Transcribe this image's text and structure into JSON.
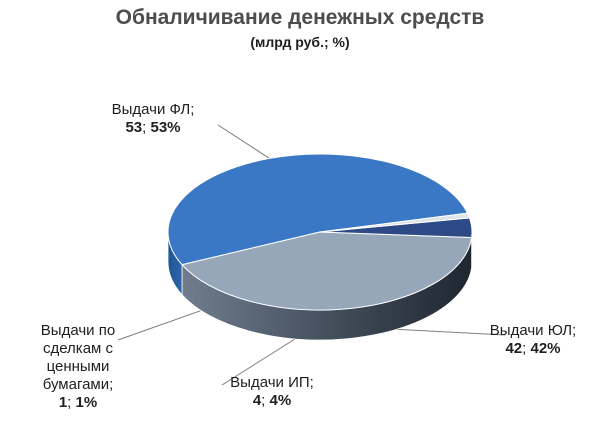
{
  "chart_data": {
    "type": "pie",
    "title": "Обналичивание денежных средств",
    "subtitle": "(млрд руб.; %)",
    "slices": [
      {
        "name": "Выдачи ФЛ",
        "value": 53,
        "percent": 53,
        "color": "#3a78c5"
      },
      {
        "name": "Выдачи ЮЛ",
        "value": 42,
        "percent": 42,
        "color": "#97a7ba"
      },
      {
        "name": "Выдачи ИП",
        "value": 4,
        "percent": 4,
        "color": "#2d4a86"
      },
      {
        "name": "Выдачи по сделкам с ценными бумагами",
        "value": 1,
        "percent": 1,
        "color": "#dfe4ea"
      }
    ]
  },
  "labels": {
    "fl": {
      "name": "Выдачи ФЛ;",
      "value": "53",
      "sep": "; ",
      "percent": "53%"
    },
    "ul": {
      "name": "Выдачи ЮЛ;",
      "value": "42",
      "sep": "; ",
      "percent": "42%"
    },
    "ip": {
      "name": "Выдачи ИП;",
      "value": "4",
      "sep": "; ",
      "percent": "4%"
    },
    "sec": {
      "name": "Выдачи по сделкам с ценными бумагами;",
      "value": "1",
      "sep": "; ",
      "percent": "1%"
    }
  }
}
